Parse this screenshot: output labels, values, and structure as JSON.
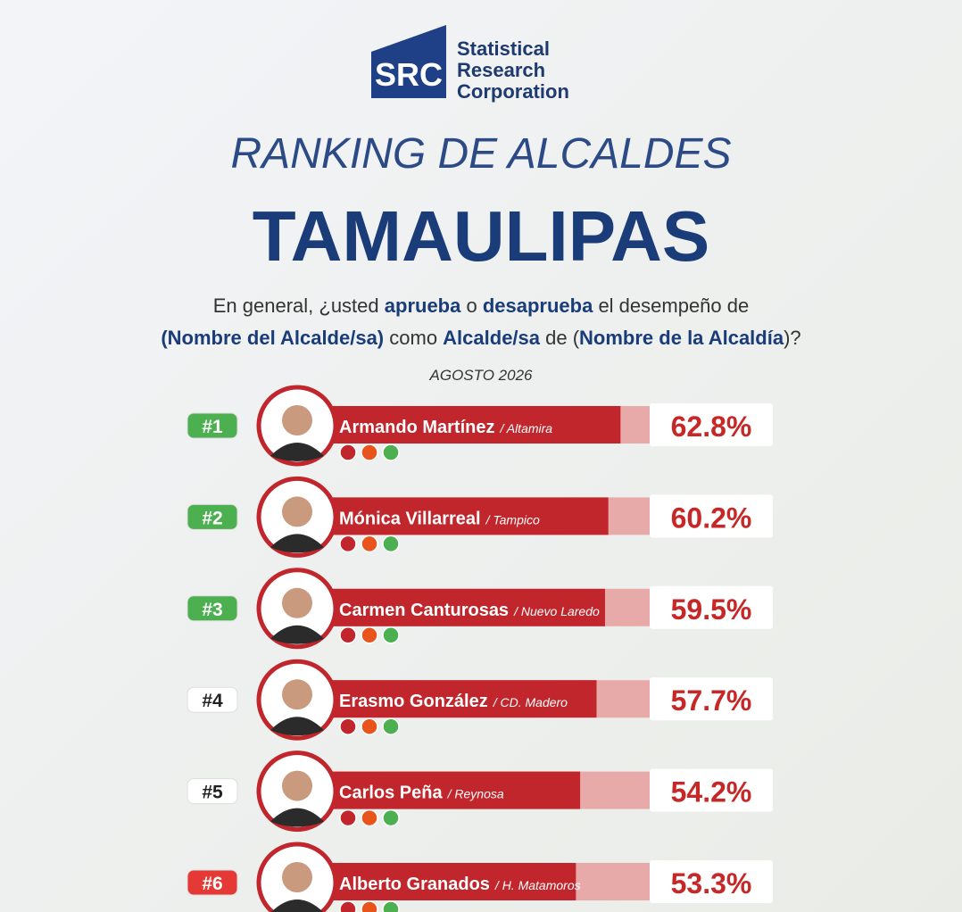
{
  "logo": {
    "mark": "SRC",
    "lines": [
      "Statistical",
      "Research",
      "Corporation"
    ]
  },
  "title": "RANKING DE ALCALDES",
  "subtitle": "TAMAULIPAS",
  "question": [
    [
      {
        "text": "En general, ¿usted ",
        "bold": false
      },
      {
        "text": "aprueba",
        "bold": true
      },
      {
        "text": " o ",
        "bold": false
      },
      {
        "text": "desaprueba",
        "bold": true
      },
      {
        "text": " el desempeño de",
        "bold": false
      }
    ],
    [
      {
        "text": "(Nombre del Alcalde/sa)",
        "bold": true
      },
      {
        "text": " como ",
        "bold": false
      },
      {
        "text": "Alcalde/sa",
        "bold": true
      },
      {
        "text": " de (",
        "bold": false
      },
      {
        "text": "Nombre de la Alcaldía",
        "bold": true
      },
      {
        "text": ")?",
        "bold": false
      }
    ]
  ],
  "date": "AGOSTO 2026",
  "rows": [
    {
      "rank": "#1",
      "badge_color": "#4caf50",
      "name": "Armando Martínez",
      "city": "/ Altamira",
      "value": 62.8,
      "value_label": "62.8%"
    },
    {
      "rank": "#2",
      "badge_color": "#4caf50",
      "name": "Mónica Villarreal",
      "city": "/ Tampico",
      "value": 60.2,
      "value_label": "60.2%"
    },
    {
      "rank": "#3",
      "badge_color": "#4caf50",
      "name": "Carmen Canturosas",
      "city": "/ Nuevo Laredo",
      "value": 59.5,
      "value_label": "59.5%"
    },
    {
      "rank": "#4",
      "badge_color": "#ffffff",
      "name": "Erasmo González",
      "city": "/ CD. Madero",
      "value": 57.7,
      "value_label": "57.7%"
    },
    {
      "rank": "#5",
      "badge_color": "#ffffff",
      "name": "Carlos Peña",
      "city": "/ Reynosa",
      "value": 54.2,
      "value_label": "54.2%"
    },
    {
      "rank": "#6",
      "badge_color": "#e53935",
      "name": "Alberto Granados",
      "city": "/ H. Matamoros",
      "value": 53.3,
      "value_label": "53.3%"
    }
  ]
}
